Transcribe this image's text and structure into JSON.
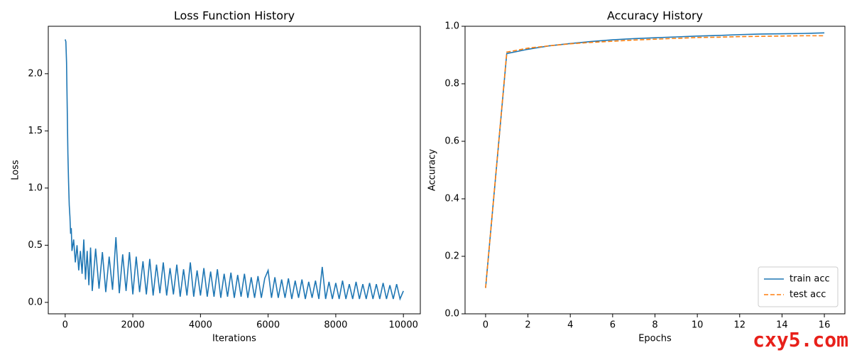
{
  "chart_data": [
    {
      "type": "line",
      "title": "Loss Function History",
      "xlabel": "Iterations",
      "ylabel": "Loss",
      "x": [
        0,
        20,
        40,
        60,
        80,
        100,
        120,
        140,
        160,
        180,
        200,
        250,
        300,
        350,
        400,
        450,
        500,
        550,
        600,
        650,
        700,
        750,
        800,
        900,
        1000,
        1100,
        1200,
        1300,
        1400,
        1500,
        1600,
        1700,
        1800,
        1900,
        2000,
        2100,
        2200,
        2300,
        2400,
        2500,
        2600,
        2700,
        2800,
        2900,
        3000,
        3100,
        3200,
        3300,
        3400,
        3500,
        3600,
        3700,
        3800,
        3900,
        4000,
        4100,
        4200,
        4300,
        4400,
        4500,
        4600,
        4700,
        4800,
        4900,
        5000,
        5100,
        5200,
        5300,
        5400,
        5500,
        5600,
        5700,
        5800,
        5900,
        6000,
        6100,
        6200,
        6300,
        6400,
        6500,
        6600,
        6700,
        6800,
        6900,
        7000,
        7100,
        7200,
        7300,
        7400,
        7500,
        7600,
        7700,
        7800,
        7900,
        8000,
        8100,
        8200,
        8300,
        8400,
        8500,
        8600,
        8700,
        8800,
        8900,
        9000,
        9100,
        9200,
        9300,
        9400,
        9500,
        9600,
        9700,
        9800,
        9900,
        10000
      ],
      "series": [
        {
          "color": "#1f77b4",
          "linestyle": "solid",
          "values": [
            2.3,
            2.28,
            2.1,
            1.7,
            1.3,
            1.05,
            0.85,
            0.75,
            0.6,
            0.65,
            0.45,
            0.55,
            0.35,
            0.5,
            0.28,
            0.45,
            0.25,
            0.55,
            0.2,
            0.45,
            0.15,
            0.48,
            0.1,
            0.47,
            0.12,
            0.44,
            0.09,
            0.4,
            0.11,
            0.57,
            0.08,
            0.42,
            0.1,
            0.44,
            0.07,
            0.4,
            0.09,
            0.36,
            0.07,
            0.38,
            0.06,
            0.33,
            0.08,
            0.35,
            0.06,
            0.3,
            0.07,
            0.33,
            0.05,
            0.29,
            0.06,
            0.35,
            0.05,
            0.28,
            0.06,
            0.3,
            0.05,
            0.27,
            0.05,
            0.29,
            0.04,
            0.25,
            0.05,
            0.26,
            0.04,
            0.24,
            0.05,
            0.25,
            0.04,
            0.22,
            0.04,
            0.23,
            0.04,
            0.21,
            0.28,
            0.04,
            0.22,
            0.04,
            0.2,
            0.04,
            0.21,
            0.03,
            0.19,
            0.04,
            0.2,
            0.03,
            0.18,
            0.04,
            0.19,
            0.03,
            0.31,
            0.03,
            0.18,
            0.03,
            0.17,
            0.03,
            0.19,
            0.03,
            0.16,
            0.03,
            0.18,
            0.03,
            0.16,
            0.03,
            0.17,
            0.03,
            0.16,
            0.03,
            0.17,
            0.03,
            0.15,
            0.03,
            0.16,
            0.03,
            0.1
          ]
        }
      ],
      "xlim": [
        -500,
        10500
      ],
      "ylim": [
        -0.1,
        2.415
      ],
      "xticks": [
        0,
        2000,
        4000,
        6000,
        8000,
        10000
      ],
      "yticks": [
        {
          "value": 0,
          "label": "0.0"
        },
        {
          "value": 0.5,
          "label": "0.5"
        },
        {
          "value": 1,
          "label": "1.0"
        },
        {
          "value": 1.5,
          "label": "1.5"
        },
        {
          "value": 2,
          "label": "2.0"
        }
      ]
    },
    {
      "type": "line",
      "title": "Accuracy History",
      "xlabel": "Epochs",
      "ylabel": "Accuracy",
      "x": [
        0,
        1,
        2,
        3,
        4,
        5,
        6,
        7,
        8,
        9,
        10,
        11,
        12,
        13,
        14,
        15,
        16
      ],
      "series": [
        {
          "name": "train acc",
          "color": "#1f77b4",
          "linestyle": "solid",
          "values": [
            0.09,
            0.905,
            0.92,
            0.932,
            0.94,
            0.947,
            0.953,
            0.957,
            0.96,
            0.963,
            0.966,
            0.968,
            0.971,
            0.973,
            0.974,
            0.975,
            0.977
          ]
        },
        {
          "name": "test acc",
          "color": "#ff7f0e",
          "linestyle": "dashed",
          "values": [
            0.09,
            0.91,
            0.924,
            0.932,
            0.939,
            0.944,
            0.948,
            0.952,
            0.955,
            0.958,
            0.961,
            0.962,
            0.964,
            0.965,
            0.966,
            0.967,
            0.967
          ]
        }
      ],
      "xlim": [
        -0.97,
        16.97
      ],
      "ylim": [
        0,
        1
      ],
      "xticks": [
        0,
        2,
        4,
        6,
        8,
        10,
        12,
        14,
        16
      ],
      "yticks": [
        {
          "value": 0,
          "label": "0.0"
        },
        {
          "value": 0.2,
          "label": "0.2"
        },
        {
          "value": 0.4,
          "label": "0.4"
        },
        {
          "value": 0.6,
          "label": "0.6"
        },
        {
          "value": 0.8,
          "label": "0.8"
        },
        {
          "value": 1,
          "label": "1.0"
        }
      ],
      "legend": "lower right"
    }
  ],
  "watermark": "cxy5.com"
}
